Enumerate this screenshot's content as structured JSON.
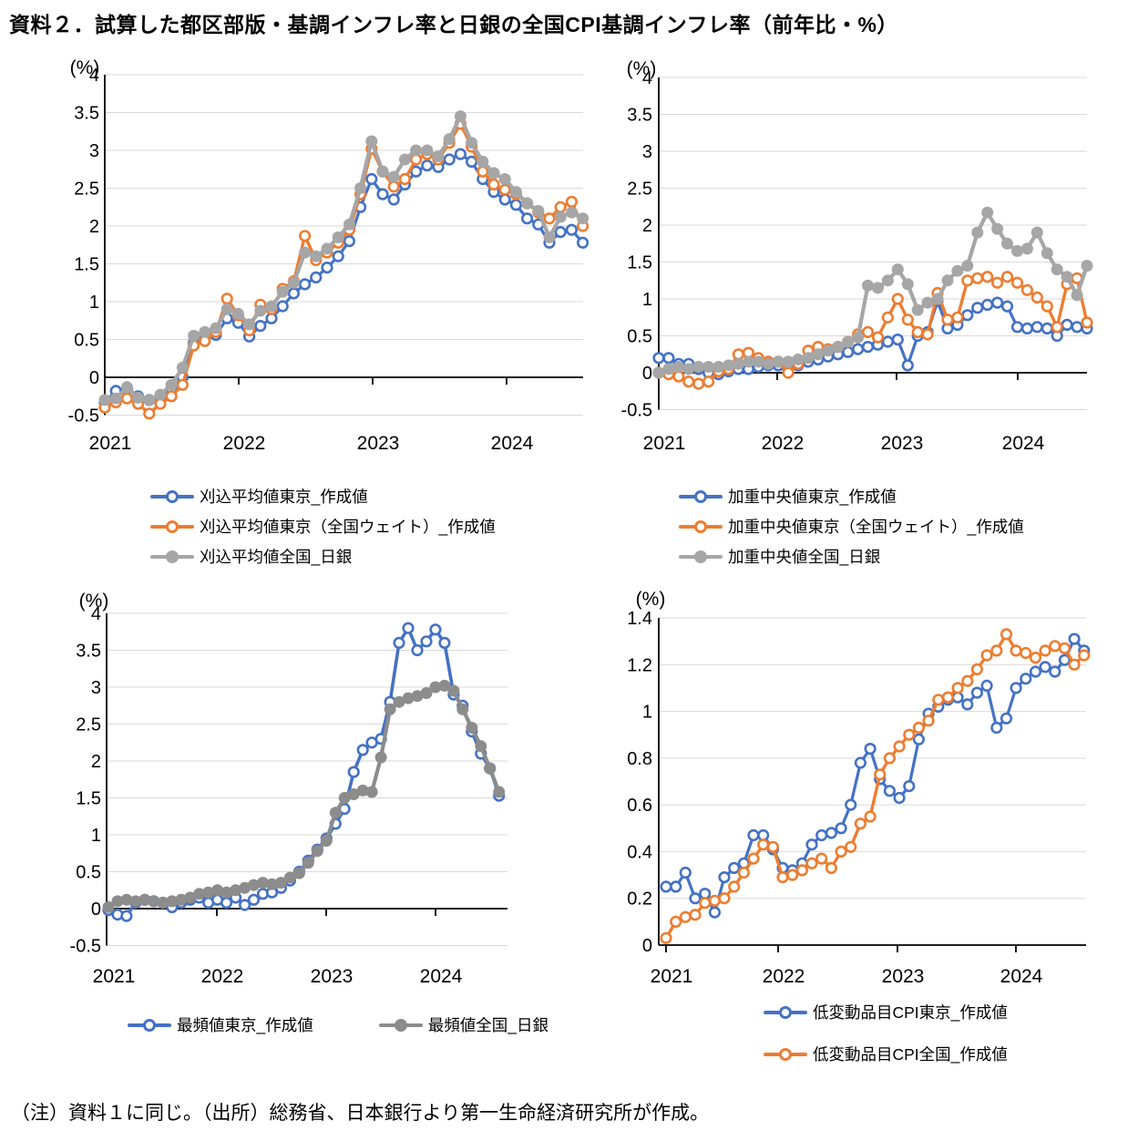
{
  "title": "資料２．試算した都区部版・基調インフレ率と日銀の全国CPI基調インフレ率（前年比・%）",
  "footnote": "（注）資料１に同じ。（出所）総務省、日本銀行より第一生命経済研究所が作成。",
  "colors": {
    "blue": "#4472C4",
    "orange": "#ED7D31",
    "gray": "#A6A6A6",
    "gray_dark": "#8C8C8C",
    "grid": "#D9D9D9",
    "axis": "#000000"
  },
  "months": [
    "2021-01",
    "2021-02",
    "2021-03",
    "2021-04",
    "2021-05",
    "2021-06",
    "2021-07",
    "2021-08",
    "2021-09",
    "2021-10",
    "2021-11",
    "2021-12",
    "2022-01",
    "2022-02",
    "2022-03",
    "2022-04",
    "2022-05",
    "2022-06",
    "2022-07",
    "2022-08",
    "2022-09",
    "2022-10",
    "2022-11",
    "2022-12",
    "2023-01",
    "2023-02",
    "2023-03",
    "2023-04",
    "2023-05",
    "2023-06",
    "2023-07",
    "2023-08",
    "2023-09",
    "2023-10",
    "2023-11",
    "2023-12",
    "2024-01",
    "2024-02",
    "2024-03",
    "2024-04",
    "2024-05",
    "2024-06",
    "2024-07",
    "2024-08"
  ],
  "chart_data": [
    {
      "id": "trimmed-mean",
      "type": "line",
      "unit_label": "(%)",
      "xticklabels": [
        "2021",
        "2022",
        "2023",
        "2024"
      ],
      "ylim": [
        -0.5,
        4
      ],
      "ytick_step": 0.5,
      "grid": true,
      "legend_position": "bottom",
      "series": [
        {
          "name": "刈込平均値東京_作成値",
          "color": "blue",
          "marker": "open",
          "values": [
            -0.33,
            -0.18,
            -0.15,
            -0.25,
            -0.3,
            -0.27,
            -0.15,
            0,
            0.45,
            0.5,
            0.56,
            0.78,
            0.72,
            0.54,
            0.68,
            0.78,
            0.94,
            1.11,
            1.23,
            1.32,
            1.45,
            1.6,
            1.8,
            2.25,
            2.62,
            2.42,
            2.35,
            2.55,
            2.72,
            2.8,
            2.78,
            2.88,
            2.95,
            2.85,
            2.62,
            2.45,
            2.35,
            2.28,
            2.1,
            2.02,
            1.78,
            1.92,
            1.95,
            1.78
          ]
        },
        {
          "name": "刈込平均値東京（全国ウェイト）_作成値",
          "color": "orange",
          "marker": "open",
          "values": [
            -0.4,
            -0.33,
            -0.28,
            -0.35,
            -0.48,
            -0.35,
            -0.25,
            -0.1,
            0.42,
            0.48,
            0.6,
            1.04,
            0.82,
            0.62,
            0.96,
            0.9,
            1.17,
            1.27,
            1.87,
            1.55,
            1.65,
            1.78,
            1.95,
            2.42,
            3.02,
            2.72,
            2.52,
            2.62,
            2.88,
            2.95,
            2.88,
            3.1,
            3.35,
            3.05,
            2.72,
            2.55,
            2.48,
            2.42,
            2.3,
            2.18,
            2.1,
            2.25,
            2.32,
            2.0
          ]
        },
        {
          "name": "刈込平均値全国_日銀",
          "color": "gray",
          "marker": "filled",
          "values": [
            -0.3,
            -0.28,
            -0.13,
            -0.27,
            -0.3,
            -0.23,
            -0.1,
            0.13,
            0.55,
            0.6,
            0.65,
            0.9,
            0.84,
            0.7,
            0.88,
            0.94,
            1.13,
            1.25,
            1.65,
            1.6,
            1.7,
            1.85,
            2.02,
            2.5,
            3.12,
            2.72,
            2.65,
            2.88,
            3.0,
            3.0,
            2.92,
            3.15,
            3.45,
            3.1,
            2.85,
            2.7,
            2.62,
            2.45,
            2.3,
            2.2,
            1.85,
            2.12,
            2.18,
            2.1
          ]
        }
      ]
    },
    {
      "id": "weighted-median",
      "type": "line",
      "unit_label": "(%)",
      "xticklabels": [
        "2021",
        "2022",
        "2023",
        "2024"
      ],
      "ylim": [
        -0.5,
        4
      ],
      "ytick_step": 0.5,
      "grid": true,
      "legend_position": "bottom",
      "series": [
        {
          "name": "加重中央値東京_作成値",
          "color": "blue",
          "marker": "open",
          "values": [
            0.2,
            0.2,
            0.12,
            0.12,
            0.05,
            0,
            -0.02,
            0.02,
            0.05,
            0.05,
            0.08,
            0.1,
            0.1,
            0.05,
            0.1,
            0.15,
            0.18,
            0.22,
            0.25,
            0.28,
            0.32,
            0.35,
            0.38,
            0.42,
            0.45,
            0.1,
            0.5,
            0.55,
            0.97,
            0.6,
            0.65,
            0.78,
            0.88,
            0.92,
            0.95,
            0.9,
            0.62,
            0.6,
            0.62,
            0.6,
            0.5,
            0.65,
            0.62,
            0.6
          ]
        },
        {
          "name": "加重中央値東京（全国ウェイト）_作成値",
          "color": "orange",
          "marker": "open",
          "values": [
            0,
            -0.02,
            -0.05,
            -0.12,
            -0.15,
            -0.12,
            0.02,
            0.05,
            0.25,
            0.27,
            0.2,
            0.15,
            0.15,
            0,
            0.12,
            0.3,
            0.35,
            0.32,
            0.35,
            0.42,
            0.52,
            0.55,
            0.48,
            0.75,
            1.0,
            0.72,
            0.55,
            0.52,
            1.08,
            0.72,
            0.75,
            1.25,
            1.28,
            1.3,
            1.22,
            1.3,
            1.22,
            1.12,
            1.02,
            0.9,
            0.62,
            1.2,
            1.28,
            0.68
          ]
        },
        {
          "name": "加重中央値全国_日銀",
          "color": "gray",
          "marker": "filled",
          "values": [
            0,
            0.05,
            0.08,
            0.05,
            0.08,
            0.08,
            0.08,
            0.1,
            0.12,
            0.15,
            0.15,
            0.12,
            0.15,
            0.15,
            0.18,
            0.2,
            0.25,
            0.3,
            0.35,
            0.42,
            0.48,
            1.18,
            1.15,
            1.25,
            1.4,
            1.2,
            0.85,
            0.95,
            1.0,
            1.25,
            1.38,
            1.45,
            1.9,
            2.17,
            1.95,
            1.75,
            1.65,
            1.68,
            1.9,
            1.62,
            1.4,
            1.3,
            1.05,
            1.45
          ]
        }
      ]
    },
    {
      "id": "mode",
      "type": "line",
      "unit_label": "(%)",
      "xticklabels": [
        "2021",
        "2022",
        "2023",
        "2024"
      ],
      "ylim": [
        -0.5,
        4
      ],
      "ytick_step": 0.5,
      "grid": true,
      "legend_position": "bottom",
      "series": [
        {
          "name": "最頻値東京_作成値",
          "color": "blue",
          "marker": "open",
          "values": [
            -0.02,
            -0.08,
            -0.1,
            0.08,
            0.12,
            0.1,
            0.08,
            0.02,
            0.08,
            0.12,
            0.15,
            0.08,
            0.12,
            0.08,
            0.15,
            0.05,
            0.12,
            0.2,
            0.22,
            0.28,
            0.38,
            0.5,
            0.65,
            0.8,
            0.95,
            1.15,
            1.35,
            1.85,
            2.15,
            2.25,
            2.3,
            2.8,
            3.6,
            3.8,
            3.5,
            3.62,
            3.78,
            3.6,
            2.9,
            2.75,
            2.4,
            2.1,
            1.9,
            1.53
          ]
        },
        {
          "name": "最頻値全国_日銀",
          "color": "gray_dark",
          "marker": "filled",
          "values": [
            0.02,
            0.1,
            0.12,
            0.1,
            0.12,
            0.1,
            0.08,
            0.1,
            0.12,
            0.15,
            0.2,
            0.22,
            0.25,
            0.22,
            0.25,
            0.28,
            0.32,
            0.35,
            0.33,
            0.35,
            0.42,
            0.48,
            0.62,
            0.78,
            0.92,
            1.3,
            1.5,
            1.55,
            1.6,
            1.58,
            2.05,
            2.7,
            2.8,
            2.85,
            2.88,
            2.92,
            3.0,
            3.02,
            2.95,
            2.7,
            2.45,
            2.2,
            1.9,
            1.58
          ]
        }
      ]
    },
    {
      "id": "low-volatility-cpi",
      "type": "line",
      "unit_label": "(%)",
      "xticklabels": [
        "2021",
        "2022",
        "2023",
        "2024"
      ],
      "ylim": [
        0,
        1.4
      ],
      "ytick_step": 0.2,
      "grid": true,
      "legend_position": "bottom",
      "series": [
        {
          "name": "低変動品目CPI東京_作成値",
          "color": "blue",
          "marker": "open",
          "values": [
            0.25,
            0.25,
            0.31,
            0.2,
            0.22,
            0.14,
            0.29,
            0.33,
            0.35,
            0.47,
            0.47,
            0.41,
            0.33,
            0.32,
            0.35,
            0.43,
            0.47,
            0.48,
            0.5,
            0.6,
            0.78,
            0.84,
            0.71,
            0.66,
            0.63,
            0.68,
            0.88,
            0.99,
            1.02,
            1.05,
            1.06,
            1.03,
            1.08,
            1.11,
            0.93,
            0.97,
            1.1,
            1.14,
            1.17,
            1.19,
            1.17,
            1.22,
            1.31,
            1.26
          ]
        },
        {
          "name": "低変動品目CPI全国_作成値",
          "color": "orange",
          "marker": "open",
          "values": [
            0.03,
            0.1,
            0.12,
            0.13,
            0.18,
            0.19,
            0.2,
            0.25,
            0.31,
            0.37,
            0.43,
            0.42,
            0.29,
            0.3,
            0.32,
            0.35,
            0.37,
            0.33,
            0.4,
            0.42,
            0.52,
            0.55,
            0.73,
            0.8,
            0.85,
            0.9,
            0.93,
            0.96,
            1.05,
            1.06,
            1.1,
            1.13,
            1.18,
            1.24,
            1.26,
            1.33,
            1.26,
            1.25,
            1.23,
            1.26,
            1.28,
            1.27,
            1.2,
            1.24
          ]
        }
      ]
    }
  ]
}
